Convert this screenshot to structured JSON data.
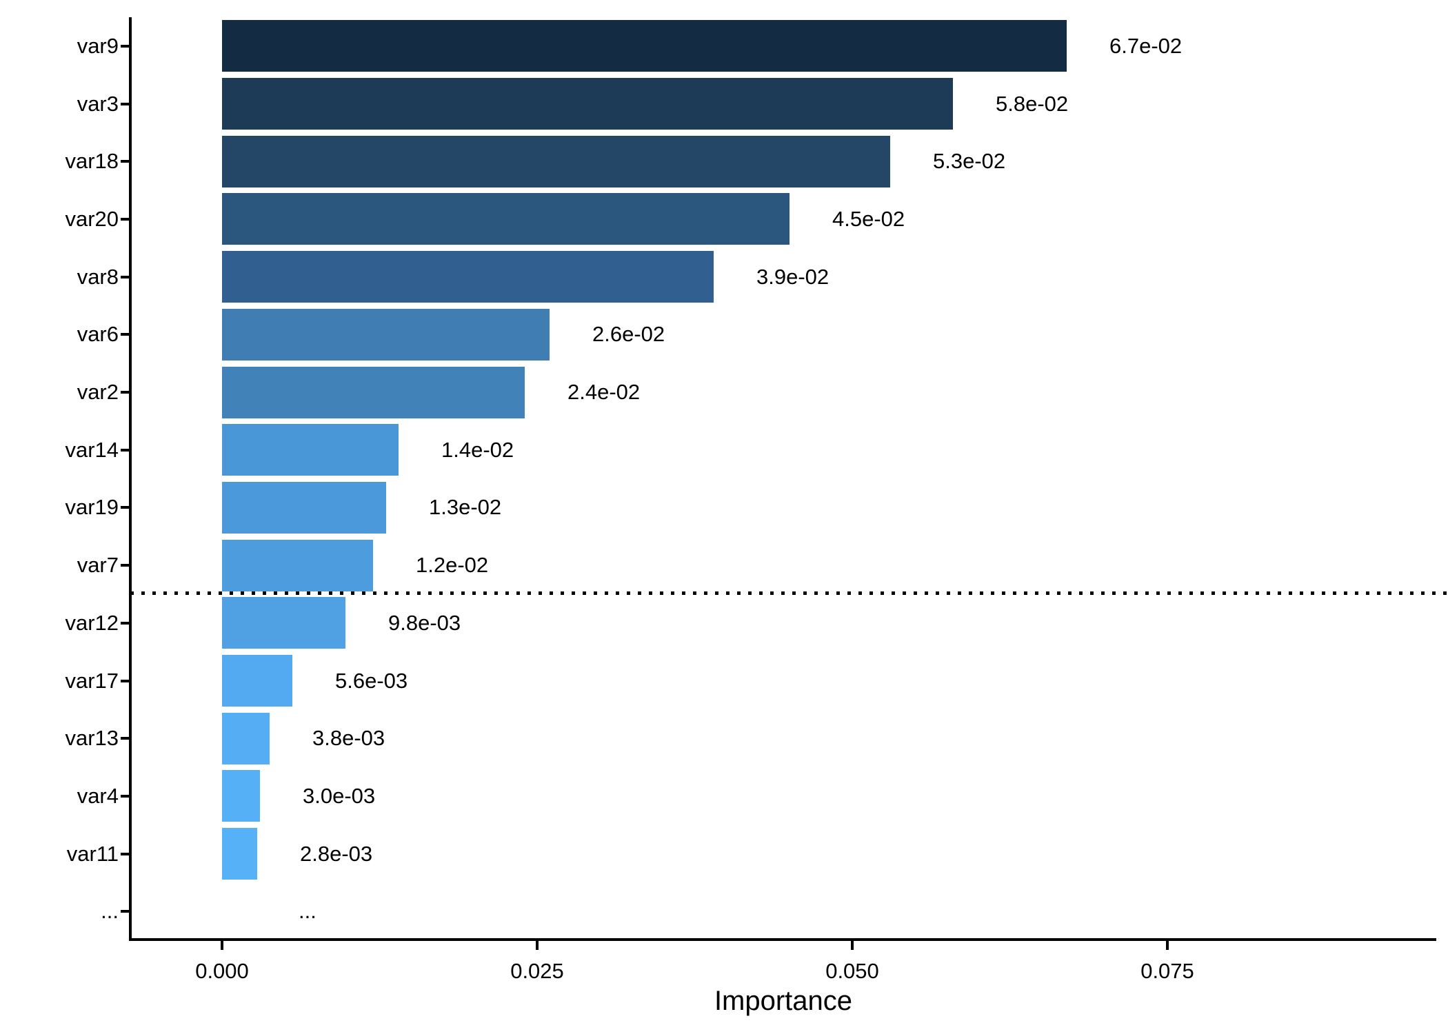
{
  "chart_data": {
    "type": "bar",
    "orientation": "horizontal",
    "title": "",
    "xlabel": "Importance",
    "ylabel": "",
    "categories": [
      "var9",
      "var3",
      "var18",
      "var20",
      "var8",
      "var6",
      "var2",
      "var14",
      "var19",
      "var7",
      "var12",
      "var17",
      "var13",
      "var4",
      "var11",
      "..."
    ],
    "values": [
      0.067,
      0.058,
      0.053,
      0.045,
      0.039,
      0.026,
      0.024,
      0.014,
      0.013,
      0.012,
      0.0098,
      0.0056,
      0.0038,
      0.003,
      0.0028,
      null
    ],
    "bar_labels": [
      "6.7e-02",
      "5.8e-02",
      "5.3e-02",
      "4.5e-02",
      "3.9e-02",
      "2.6e-02",
      "2.4e-02",
      "1.4e-02",
      "1.3e-02",
      "1.2e-02",
      "9.8e-03",
      "5.6e-03",
      "3.8e-03",
      "3.0e-03",
      "2.8e-03",
      "..."
    ],
    "bar_colors": [
      "#132B43",
      "#1D3A57",
      "#244768",
      "#2B567E",
      "#316090",
      "#3F7DB3",
      "#4182B8",
      "#4A97D8",
      "#4B99DA",
      "#4C9CDE",
      "#4FA1E4",
      "#53AAF0",
      "#55AEF4",
      "#56B0F6",
      "#56B1F7",
      null
    ],
    "x_ticks": {
      "values": [
        0,
        0.025,
        0.05,
        0.075
      ],
      "labels": [
        "0.000",
        "0.025",
        "0.050",
        "0.075"
      ]
    },
    "xlim": [
      -0.0073,
      0.0973
    ],
    "grid": false,
    "legend": "none",
    "separator_after_index": 9,
    "separator_style": "dotted",
    "axis_color": "#000000",
    "background_color": "#FFFFFF"
  }
}
